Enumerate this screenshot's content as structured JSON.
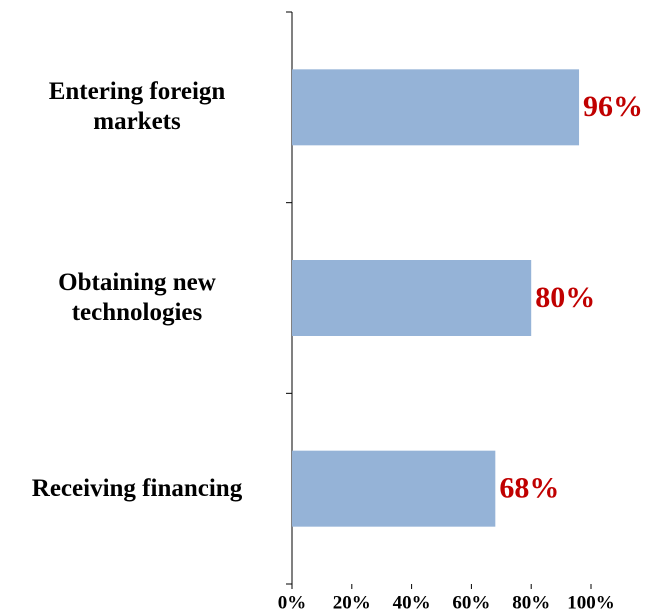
{
  "chart_data": {
    "type": "bar",
    "orientation": "horizontal",
    "categories": [
      "Entering foreign markets",
      "Obtaining new technologies",
      "Receiving financing"
    ],
    "values": [
      96,
      80,
      68
    ],
    "value_labels": [
      "96%",
      "80%",
      "68%"
    ],
    "color": "#95b3d7",
    "value_label_color": "#c00000",
    "xlim": [
      0,
      100
    ],
    "xticks": [
      {
        "value": 0,
        "label": "0%"
      },
      {
        "value": 20,
        "label": "20%"
      },
      {
        "value": 40,
        "label": "40%"
      },
      {
        "value": 60,
        "label": "60%"
      },
      {
        "value": 80,
        "label": "80%"
      },
      {
        "value": 100,
        "label": "100%"
      }
    ],
    "grid": false
  }
}
